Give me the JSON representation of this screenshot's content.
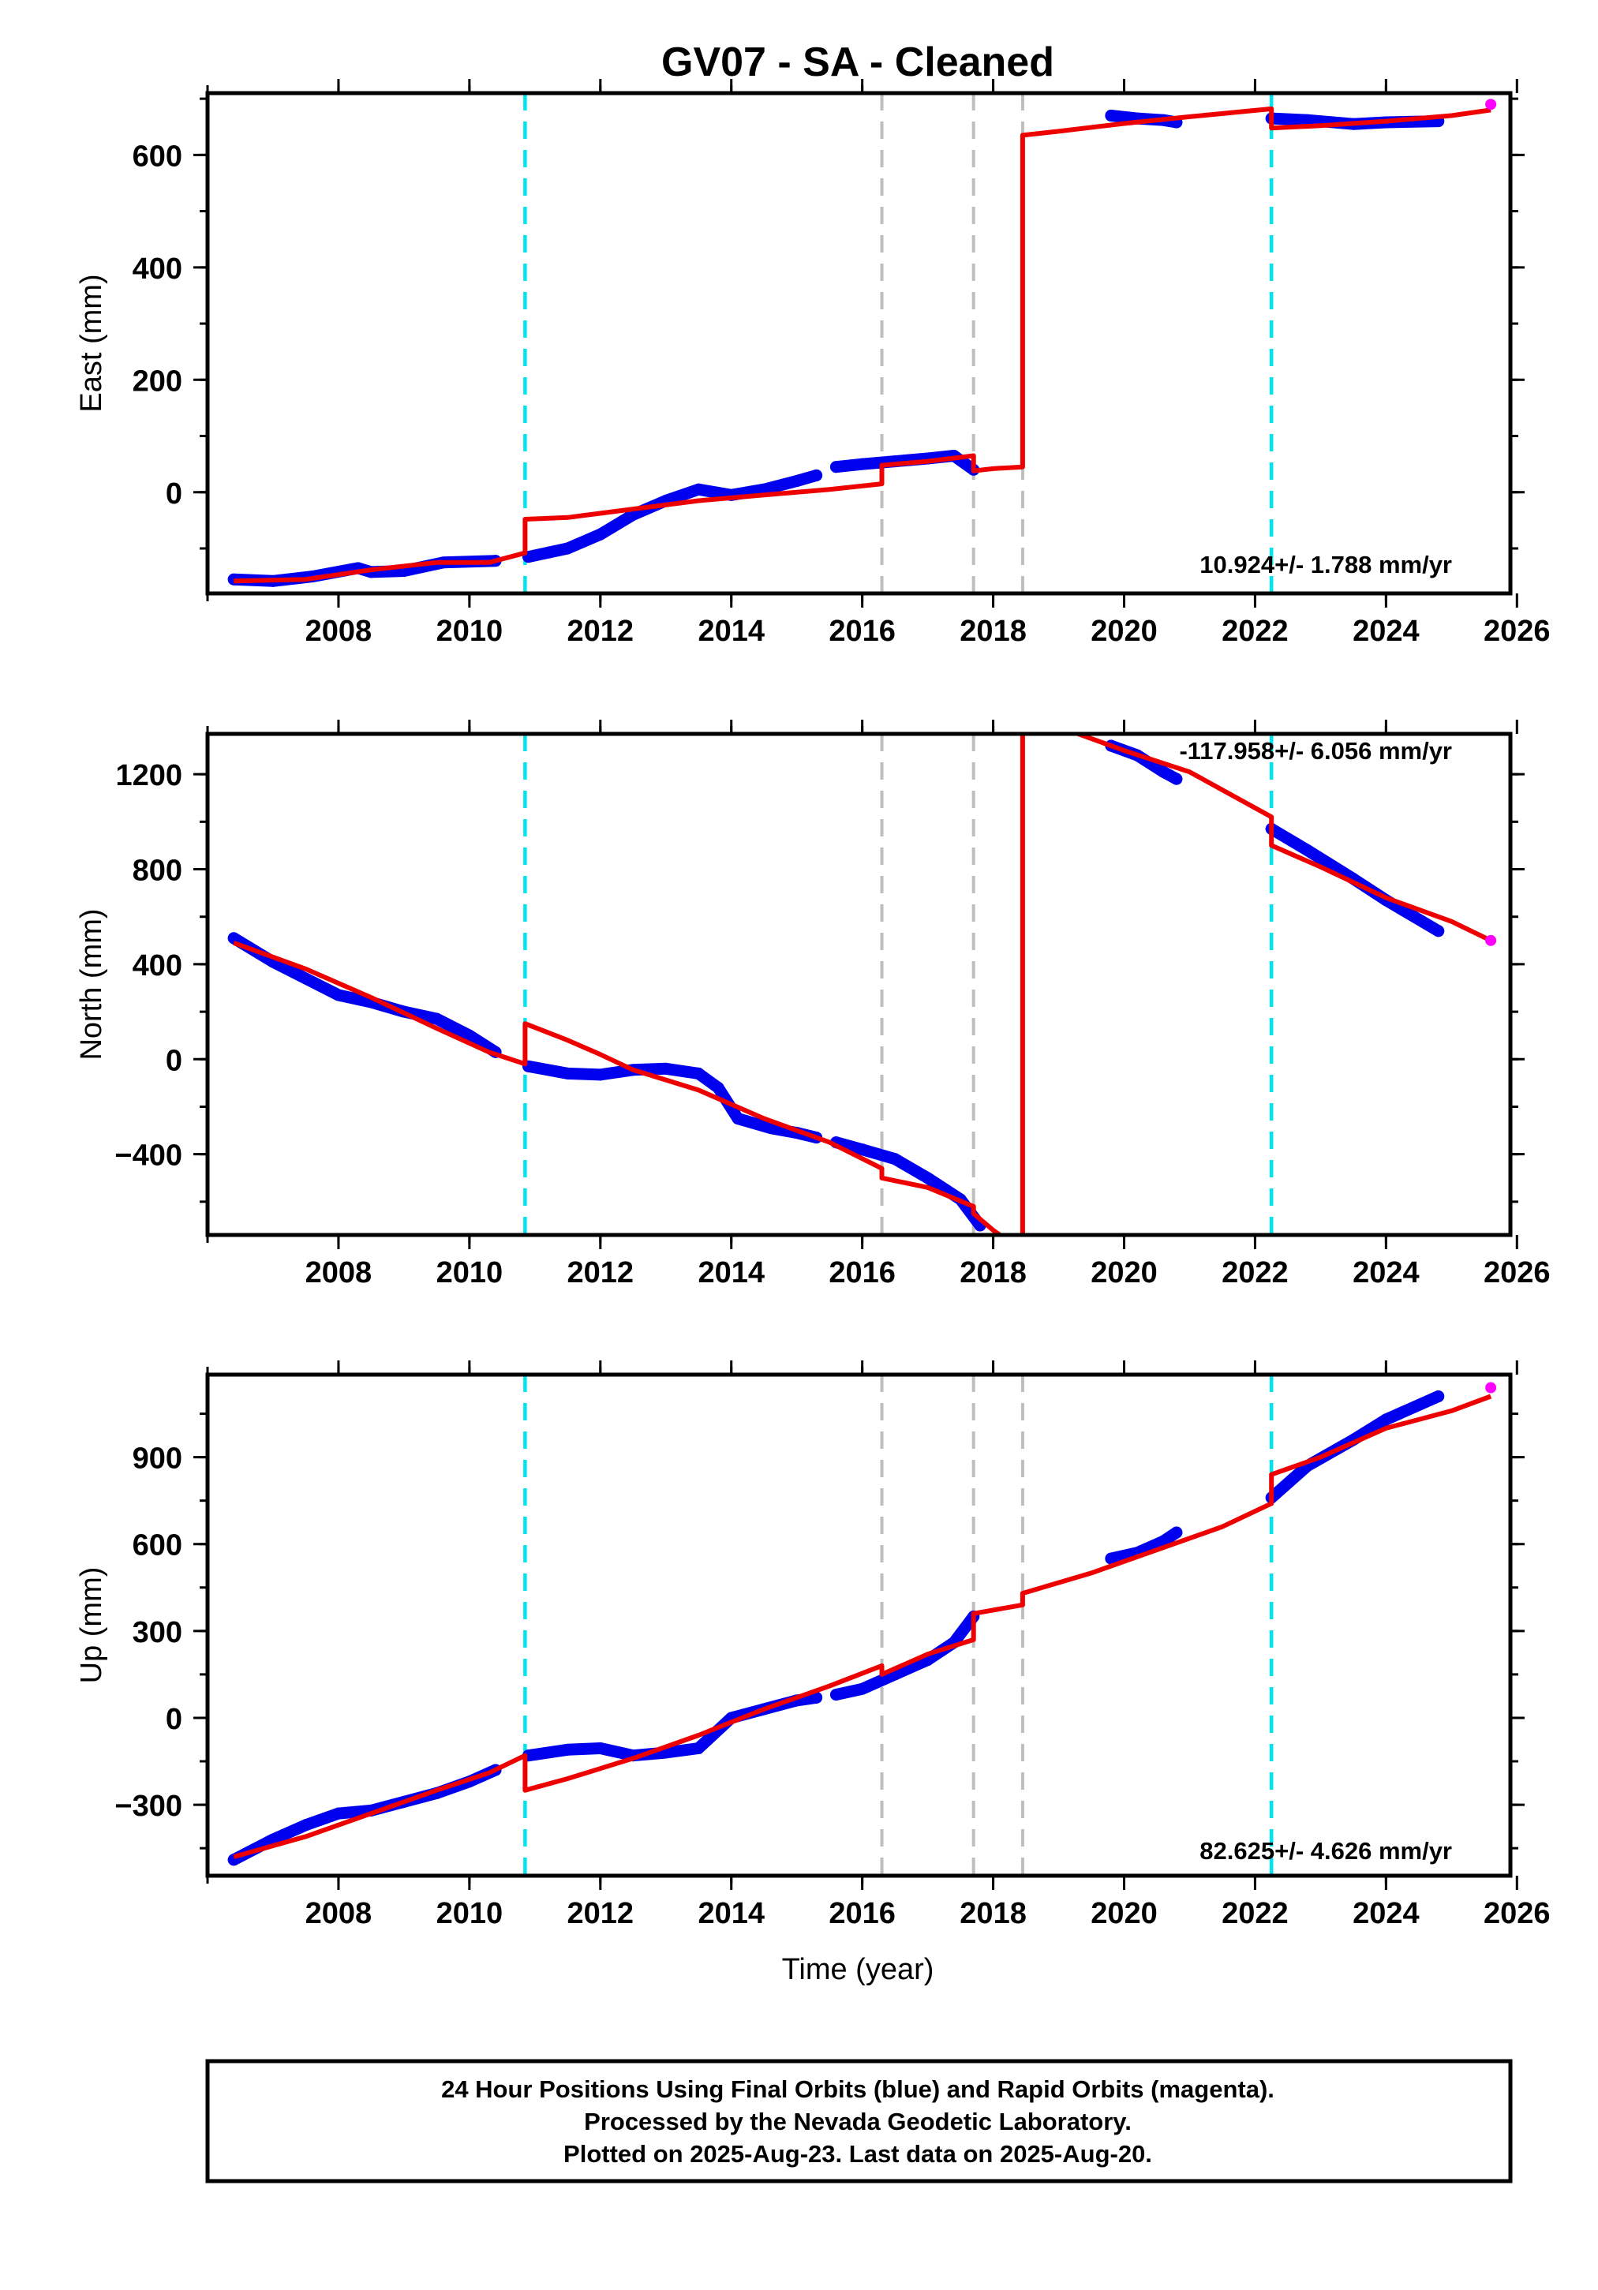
{
  "title": "GV07  - SA - Cleaned",
  "xlabel": "Time (year)",
  "footer": {
    "line1": "24 Hour Positions Using Final Orbits (blue) and Rapid Orbits (magenta).",
    "line2": "Processed by the Nevada Geodetic Laboratory.",
    "line3": "Plotted on 2025-Aug-23. Last data on 2025-Aug-20."
  },
  "colors": {
    "final_orbit": "#0000ee",
    "rapid_orbit": "#ff00ff",
    "model": "#ee0000",
    "equipment_change": "#00e5ee",
    "earthquake": "#bebebe"
  },
  "chart_data": [
    {
      "type": "scatter",
      "ylabel": "East (mm)",
      "rate_label": "10.924+/- 1.788 mm/yr",
      "xlim": [
        2006.0,
        2025.9
      ],
      "ylim": [
        -180,
        710
      ],
      "x_ticks": [
        2008,
        2010,
        2012,
        2014,
        2016,
        2018,
        2020,
        2022,
        2024,
        2026
      ],
      "y_ticks": [
        0,
        200,
        400,
        600
      ],
      "equipment_change_lines": [
        2010.85,
        2022.25
      ],
      "earthquake_lines": [
        2016.3,
        2017.7,
        2018.45
      ],
      "final_orbit_segments": [
        [
          [
            2006.4,
            -155
          ],
          [
            2007.0,
            -158
          ],
          [
            2007.6,
            -150
          ],
          [
            2008.3,
            -135
          ],
          [
            2008.5,
            -142
          ],
          [
            2009.0,
            -140
          ],
          [
            2009.6,
            -125
          ],
          [
            2010.4,
            -122
          ]
        ],
        [
          [
            2010.9,
            -115
          ],
          [
            2011.5,
            -100
          ],
          [
            2012.0,
            -75
          ],
          [
            2012.5,
            -40
          ],
          [
            2013.0,
            -15
          ],
          [
            2013.5,
            5
          ],
          [
            2014.0,
            -5
          ],
          [
            2014.5,
            5
          ],
          [
            2015.0,
            20
          ],
          [
            2015.3,
            30
          ]
        ],
        [
          [
            2015.6,
            45
          ],
          [
            2016.0,
            50
          ],
          [
            2016.5,
            55
          ],
          [
            2017.0,
            60
          ],
          [
            2017.4,
            65
          ],
          [
            2017.7,
            40
          ]
        ],
        [
          [
            2019.8,
            670
          ],
          [
            2020.2,
            665
          ],
          [
            2020.6,
            662
          ],
          [
            2020.8,
            658
          ]
        ],
        [
          [
            2022.25,
            665
          ],
          [
            2022.8,
            662
          ],
          [
            2023.5,
            655
          ],
          [
            2024.0,
            658
          ],
          [
            2024.8,
            660
          ]
        ]
      ],
      "rapid_orbit_points": [
        [
          2025.6,
          690
        ]
      ],
      "model": [
        [
          2006.4,
          -158
        ],
        [
          2007.5,
          -155
        ],
        [
          2008.5,
          -138
        ],
        [
          2009.5,
          -125
        ],
        [
          2010.3,
          -125
        ],
        [
          2010.85,
          -108
        ],
        [
          2010.85,
          -48
        ],
        [
          2011.5,
          -45
        ],
        [
          2012.5,
          -30
        ],
        [
          2013.5,
          -15
        ],
        [
          2014.5,
          -5
        ],
        [
          2015.5,
          5
        ],
        [
          2016.3,
          15
        ],
        [
          2016.3,
          48
        ],
        [
          2017.0,
          55
        ],
        [
          2017.7,
          65
        ],
        [
          2017.7,
          38
        ],
        [
          2018.0,
          42
        ],
        [
          2018.45,
          45
        ],
        [
          2018.45,
          635
        ],
        [
          2019.0,
          642
        ],
        [
          2020.0,
          656
        ],
        [
          2021.0,
          668
        ],
        [
          2022.25,
          682
        ],
        [
          2022.25,
          648
        ],
        [
          2023.0,
          652
        ],
        [
          2024.0,
          660
        ],
        [
          2025.0,
          670
        ],
        [
          2025.6,
          680
        ]
      ]
    },
    {
      "type": "scatter",
      "ylabel": "North (mm)",
      "rate_label": "-117.958+/- 6.056 mm/yr",
      "xlim": [
        2006.0,
        2025.9
      ],
      "ylim": [
        -740,
        1370
      ],
      "x_ticks": [
        2008,
        2010,
        2012,
        2014,
        2016,
        2018,
        2020,
        2022,
        2024,
        2026
      ],
      "y_ticks": [
        -400,
        0,
        400,
        800,
        1200
      ],
      "equipment_change_lines": [
        2010.85,
        2022.25
      ],
      "earthquake_lines": [
        2016.3,
        2017.7,
        2018.45
      ],
      "final_orbit_segments": [
        [
          [
            2006.4,
            510
          ],
          [
            2007.0,
            410
          ],
          [
            2007.5,
            340
          ],
          [
            2008.0,
            270
          ],
          [
            2008.5,
            240
          ],
          [
            2009.0,
            200
          ],
          [
            2009.5,
            170
          ],
          [
            2010.0,
            100
          ],
          [
            2010.4,
            30
          ]
        ],
        [
          [
            2010.9,
            -30
          ],
          [
            2011.5,
            -60
          ],
          [
            2012.0,
            -65
          ],
          [
            2012.5,
            -45
          ],
          [
            2013.0,
            -40
          ],
          [
            2013.5,
            -60
          ],
          [
            2013.8,
            -120
          ],
          [
            2014.1,
            -250
          ],
          [
            2014.6,
            -290
          ],
          [
            2015.0,
            -310
          ],
          [
            2015.3,
            -330
          ]
        ],
        [
          [
            2015.6,
            -350
          ],
          [
            2016.0,
            -380
          ],
          [
            2016.5,
            -420
          ],
          [
            2017.0,
            -500
          ],
          [
            2017.5,
            -590
          ],
          [
            2017.8,
            -700
          ]
        ],
        [
          [
            2019.8,
            1320
          ],
          [
            2020.2,
            1280
          ],
          [
            2020.6,
            1210
          ],
          [
            2020.8,
            1180
          ]
        ],
        [
          [
            2022.25,
            970
          ],
          [
            2022.8,
            880
          ],
          [
            2023.5,
            760
          ],
          [
            2024.0,
            670
          ],
          [
            2024.8,
            540
          ]
        ]
      ],
      "rapid_orbit_points": [
        [
          2025.6,
          500
        ]
      ],
      "model": [
        [
          2006.4,
          490
        ],
        [
          2007.5,
          380
        ],
        [
          2008.5,
          260
        ],
        [
          2009.5,
          130
        ],
        [
          2010.3,
          30
        ],
        [
          2010.85,
          -20
        ],
        [
          2010.85,
          150
        ],
        [
          2011.5,
          80
        ],
        [
          2012.0,
          20
        ],
        [
          2012.5,
          -45
        ],
        [
          2013.5,
          -130
        ],
        [
          2014.5,
          -250
        ],
        [
          2015.5,
          -350
        ],
        [
          2016.3,
          -460
        ],
        [
          2016.3,
          -500
        ],
        [
          2017.0,
          -540
        ],
        [
          2017.7,
          -620
        ],
        [
          2017.7,
          -650
        ],
        [
          2018.0,
          -720
        ],
        [
          2018.2,
          -760
        ],
        [
          2018.45,
          -760
        ],
        [
          2018.45,
          1400
        ],
        [
          2019.0,
          1400
        ],
        [
          2020.0,
          1300
        ],
        [
          2021.0,
          1210
        ],
        [
          2022.25,
          1020
        ],
        [
          2022.25,
          900
        ],
        [
          2023.0,
          810
        ],
        [
          2024.0,
          680
        ],
        [
          2025.0,
          580
        ],
        [
          2025.6,
          500
        ]
      ]
    },
    {
      "type": "scatter",
      "ylabel": "Up (mm)",
      "rate_label": "82.625+/- 4.626 mm/yr",
      "xlim": [
        2006.0,
        2025.9
      ],
      "ylim": [
        -545,
        1185
      ],
      "x_ticks": [
        2008,
        2010,
        2012,
        2014,
        2016,
        2018,
        2020,
        2022,
        2024,
        2026
      ],
      "y_ticks": [
        -300,
        0,
        300,
        600,
        900
      ],
      "equipment_change_lines": [
        2010.85,
        2022.25
      ],
      "earthquake_lines": [
        2016.3,
        2017.7,
        2018.45
      ],
      "final_orbit_segments": [
        [
          [
            2006.4,
            -490
          ],
          [
            2007.0,
            -420
          ],
          [
            2007.5,
            -370
          ],
          [
            2008.0,
            -330
          ],
          [
            2008.5,
            -320
          ],
          [
            2009.0,
            -290
          ],
          [
            2009.5,
            -260
          ],
          [
            2010.0,
            -220
          ],
          [
            2010.4,
            -180
          ]
        ],
        [
          [
            2010.9,
            -130
          ],
          [
            2011.5,
            -110
          ],
          [
            2012.0,
            -105
          ],
          [
            2012.5,
            -130
          ],
          [
            2013.0,
            -120
          ],
          [
            2013.5,
            -105
          ],
          [
            2014.0,
            0
          ],
          [
            2014.5,
            30
          ],
          [
            2015.0,
            60
          ],
          [
            2015.3,
            70
          ]
        ],
        [
          [
            2015.6,
            80
          ],
          [
            2016.0,
            100
          ],
          [
            2016.5,
            150
          ],
          [
            2017.0,
            200
          ],
          [
            2017.4,
            260
          ],
          [
            2017.7,
            350
          ]
        ],
        [
          [
            2019.8,
            550
          ],
          [
            2020.2,
            570
          ],
          [
            2020.6,
            610
          ],
          [
            2020.8,
            640
          ]
        ],
        [
          [
            2022.25,
            760
          ],
          [
            2022.8,
            870
          ],
          [
            2023.5,
            960
          ],
          [
            2024.0,
            1030
          ],
          [
            2024.8,
            1110
          ]
        ]
      ],
      "rapid_orbit_points": [
        [
          2025.6,
          1140
        ]
      ],
      "model": [
        [
          2006.4,
          -480
        ],
        [
          2007.5,
          -410
        ],
        [
          2008.5,
          -330
        ],
        [
          2009.5,
          -250
        ],
        [
          2010.3,
          -190
        ],
        [
          2010.85,
          -130
        ],
        [
          2010.85,
          -250
        ],
        [
          2011.5,
          -210
        ],
        [
          2012.5,
          -140
        ],
        [
          2013.5,
          -60
        ],
        [
          2014.5,
          30
        ],
        [
          2015.5,
          110
        ],
        [
          2016.3,
          180
        ],
        [
          2016.3,
          150
        ],
        [
          2017.0,
          220
        ],
        [
          2017.7,
          270
        ],
        [
          2017.7,
          360
        ],
        [
          2018.45,
          390
        ],
        [
          2018.45,
          430
        ],
        [
          2019.5,
          500
        ],
        [
          2020.5,
          580
        ],
        [
          2021.5,
          660
        ],
        [
          2022.25,
          740
        ],
        [
          2022.25,
          840
        ],
        [
          2023.0,
          900
        ],
        [
          2024.0,
          1000
        ],
        [
          2025.0,
          1060
        ],
        [
          2025.6,
          1110
        ]
      ]
    }
  ]
}
